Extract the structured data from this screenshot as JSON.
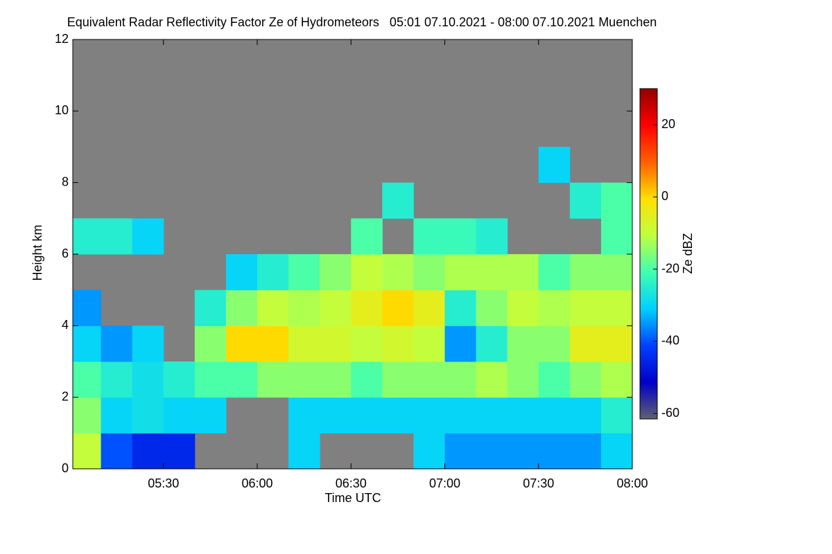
{
  "chart_data": {
    "type": "heatmap",
    "title": "Equivalent Radar Reflectivity Factor Ze of Hydrometeors   05:01 07.10.2021 - 08:00 07.10.2021 Muenchen",
    "x_label": "Time UTC",
    "y_label": "Height km",
    "colorbar_label": "Ze dBZ",
    "xlim": [
      "05:01",
      "08:00"
    ],
    "xticks": [
      "05:30",
      "06:00",
      "06:30",
      "07:00",
      "07:30",
      "08:00"
    ],
    "ylim": [
      0,
      12
    ],
    "yticks": [
      0,
      2,
      4,
      6,
      8,
      10,
      12
    ],
    "zlim": [
      -61.5,
      30
    ],
    "zticks": [
      -60,
      -40,
      -20,
      0,
      20
    ],
    "background": "#808080",
    "colormap": [
      "#606070",
      "#0000c8",
      "#0040ff",
      "#00d0ff",
      "#40ffb0",
      "#c0ff40",
      "#ffe000",
      "#ff6000",
      "#ff0000",
      "#900000"
    ],
    "x_bins": [
      "05:01",
      "05:10",
      "05:20",
      "05:30",
      "05:40",
      "05:50",
      "06:00",
      "06:10",
      "06:20",
      "06:30",
      "06:40",
      "06:50",
      "07:00",
      "07:10",
      "07:20",
      "07:30",
      "07:40",
      "07:50",
      "08:00"
    ],
    "y_bins": [
      0,
      1,
      2,
      3,
      4,
      5,
      6,
      7,
      8,
      9
    ],
    "z": [
      [
        -10,
        -40,
        -45,
        -45,
        null,
        null,
        null,
        -30,
        null,
        null,
        null,
        -30,
        -35,
        -35,
        -35,
        -35,
        -35,
        -30
      ],
      [
        -15,
        -30,
        -28,
        -30,
        -30,
        null,
        null,
        -30,
        -30,
        -30,
        -30,
        -30,
        -30,
        -30,
        -30,
        -30,
        -30,
        -25
      ],
      [
        -20,
        -25,
        -28,
        -25,
        -20,
        -20,
        -15,
        -15,
        -15,
        -20,
        -15,
        -15,
        -15,
        -12,
        -15,
        -20,
        -15,
        -12
      ],
      [
        -30,
        -35,
        -30,
        null,
        -15,
        0,
        0,
        -8,
        -8,
        -10,
        -8,
        -10,
        -35,
        -25,
        -15,
        -15,
        -5,
        -5
      ],
      [
        -35,
        null,
        null,
        null,
        -25,
        -15,
        -10,
        -12,
        -10,
        -5,
        0,
        -5,
        -25,
        -15,
        -10,
        -12,
        -10,
        -10
      ],
      [
        null,
        null,
        null,
        null,
        null,
        -30,
        -25,
        -20,
        -15,
        -10,
        -12,
        -15,
        -12,
        -12,
        -12,
        -20,
        -15,
        -15
      ],
      [
        -25,
        -25,
        -30,
        null,
        null,
        null,
        null,
        null,
        null,
        -20,
        null,
        -22,
        -22,
        -25,
        null,
        null,
        null,
        -20
      ],
      [
        null,
        null,
        null,
        null,
        null,
        null,
        null,
        null,
        null,
        null,
        -25,
        null,
        null,
        null,
        null,
        null,
        -25,
        -20
      ],
      [
        null,
        null,
        null,
        null,
        null,
        null,
        null,
        null,
        null,
        null,
        null,
        null,
        null,
        null,
        null,
        -30,
        null,
        null
      ]
    ]
  }
}
